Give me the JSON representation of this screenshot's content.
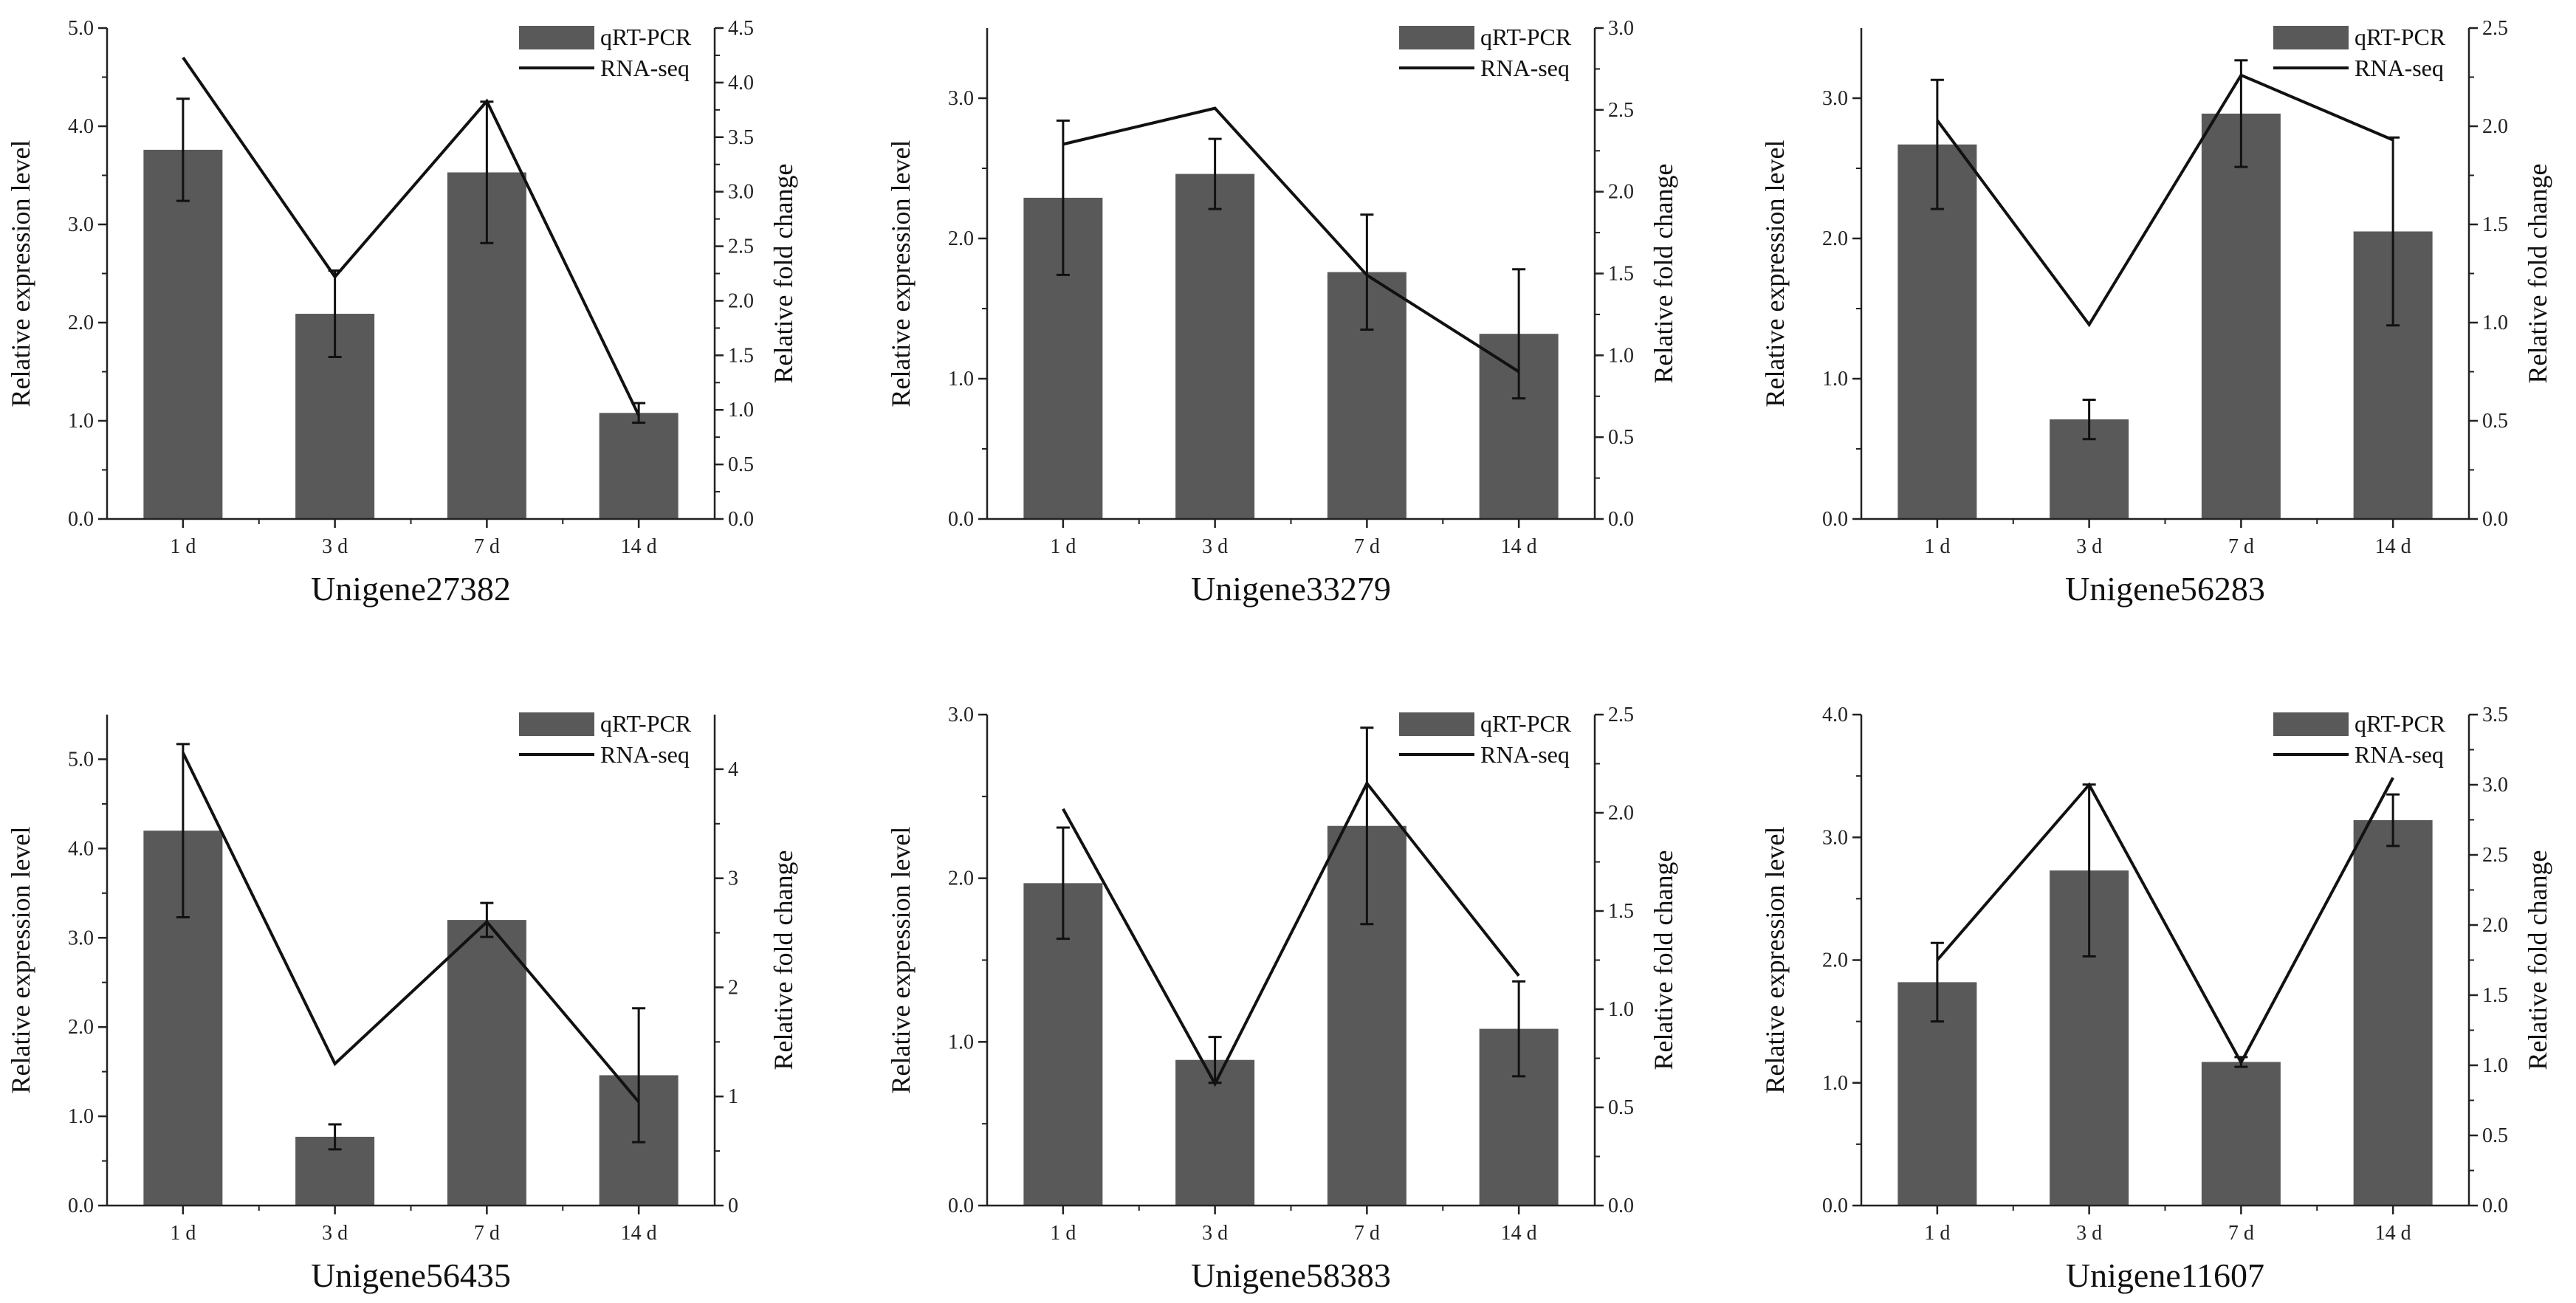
{
  "colors": {
    "bar": "#595959",
    "line": "#111111",
    "axis": "#222222"
  },
  "legend": {
    "bar_label": "qRT-PCR",
    "line_label": "RNA-seq"
  },
  "chart_data": [
    {
      "type": "bar",
      "title": "Unigene27382",
      "categories": [
        "1 d",
        "3 d",
        "7 d",
        "14 d"
      ],
      "ylabel": "Relative expression level",
      "y2label": "Relative fold change",
      "ylim": [
        0,
        5.0
      ],
      "yticks": [
        0,
        1,
        2,
        3,
        4,
        5
      ],
      "ytick_labels": [
        "0.0",
        "1.0",
        "2.0",
        "3.0",
        "4.0",
        "5.0"
      ],
      "y2lim": [
        0,
        4.5
      ],
      "y2ticks": [
        0,
        0.5,
        1,
        1.5,
        2,
        2.5,
        3,
        3.5,
        4,
        4.5
      ],
      "y2tick_labels": [
        "0.0",
        "0.5",
        "1.0",
        "1.5",
        "2.0",
        "2.5",
        "3.0",
        "3.5",
        "4.0",
        "4.5"
      ],
      "series": [
        {
          "name": "qRT-PCR",
          "kind": "bar",
          "axis": "left",
          "values": [
            3.76,
            2.09,
            3.53,
            1.08
          ],
          "errors": [
            0.52,
            0.44,
            0.72,
            0.1
          ]
        },
        {
          "name": "RNA-seq",
          "kind": "line",
          "axis": "right",
          "values": [
            4.23,
            2.22,
            3.83,
            0.95
          ]
        }
      ]
    },
    {
      "type": "bar",
      "title": "Unigene33279",
      "categories": [
        "1 d",
        "3 d",
        "7 d",
        "14 d"
      ],
      "ylabel": "Relative expression level",
      "y2label": "Relative fold change",
      "ylim": [
        0,
        3.5
      ],
      "yticks": [
        0,
        1,
        2,
        3
      ],
      "ytick_labels": [
        "0.0",
        "1.0",
        "2.0",
        "3.0"
      ],
      "y2lim": [
        0,
        3.0
      ],
      "y2ticks": [
        0,
        0.5,
        1,
        1.5,
        2,
        2.5,
        3
      ],
      "y2tick_labels": [
        "0.0",
        "0.5",
        "1.0",
        "1.5",
        "2.0",
        "2.5",
        "3.0"
      ],
      "series": [
        {
          "name": "qRT-PCR",
          "kind": "bar",
          "axis": "left",
          "values": [
            2.29,
            2.46,
            1.76,
            1.32
          ],
          "errors": [
            0.55,
            0.25,
            0.41,
            0.46
          ]
        },
        {
          "name": "RNA-seq",
          "kind": "line",
          "axis": "right",
          "values": [
            2.29,
            2.51,
            1.49,
            0.9
          ]
        }
      ]
    },
    {
      "type": "bar",
      "title": "Unigene56283",
      "categories": [
        "1 d",
        "3 d",
        "7 d",
        "14 d"
      ],
      "ylabel": "Relative expression level",
      "y2label": "Relative fold change",
      "ylim": [
        0,
        3.5
      ],
      "yticks": [
        0,
        1,
        2,
        3
      ],
      "ytick_labels": [
        "0.0",
        "1.0",
        "2.0",
        "3.0"
      ],
      "y2lim": [
        0,
        2.5
      ],
      "y2ticks": [
        0,
        0.5,
        1,
        1.5,
        2,
        2.5
      ],
      "y2tick_labels": [
        "0.0",
        "0.5",
        "1.0",
        "1.5",
        "2.0",
        "2.5"
      ],
      "series": [
        {
          "name": "qRT-PCR",
          "kind": "bar",
          "axis": "left",
          "values": [
            2.67,
            0.71,
            2.89,
            2.05
          ],
          "errors": [
            0.46,
            0.14,
            0.38,
            0.67
          ]
        },
        {
          "name": "RNA-seq",
          "kind": "line",
          "axis": "right",
          "values": [
            2.03,
            0.99,
            2.26,
            1.93
          ]
        }
      ]
    },
    {
      "type": "bar",
      "title": "Unigene56435",
      "categories": [
        "1 d",
        "3 d",
        "7 d",
        "14 d"
      ],
      "ylabel": "Relative expression level",
      "y2label": "Relative fold change",
      "ylim": [
        0,
        5.5
      ],
      "yticks": [
        0,
        1,
        2,
        3,
        4,
        5
      ],
      "ytick_labels": [
        "0.0",
        "1.0",
        "2.0",
        "3.0",
        "4.0",
        "5.0"
      ],
      "y2lim": [
        0,
        4.5
      ],
      "y2ticks": [
        0,
        1,
        2,
        3,
        4
      ],
      "y2tick_labels": [
        "0",
        "1",
        "2",
        "3",
        "4"
      ],
      "series": [
        {
          "name": "qRT-PCR",
          "kind": "bar",
          "axis": "left",
          "values": [
            4.2,
            0.77,
            3.2,
            1.46
          ],
          "errors": [
            0.97,
            0.14,
            0.19,
            0.75
          ]
        },
        {
          "name": "RNA-seq",
          "kind": "line",
          "axis": "right",
          "values": [
            4.15,
            1.3,
            2.6,
            0.95
          ]
        }
      ]
    },
    {
      "type": "bar",
      "title": "Unigene58383",
      "categories": [
        "1 d",
        "3 d",
        "7 d",
        "14 d"
      ],
      "ylabel": "Relative expression level",
      "y2label": "Relative fold change",
      "ylim": [
        0,
        3.0
      ],
      "yticks": [
        0,
        1,
        2,
        3
      ],
      "ytick_labels": [
        "0.0",
        "1.0",
        "2.0",
        "3.0"
      ],
      "y2lim": [
        0,
        2.5
      ],
      "y2ticks": [
        0,
        0.5,
        1,
        1.5,
        2,
        2.5
      ],
      "y2tick_labels": [
        "0.0",
        "0.5",
        "1.0",
        "1.5",
        "2.0",
        "2.5"
      ],
      "series": [
        {
          "name": "qRT-PCR",
          "kind": "bar",
          "axis": "left",
          "values": [
            1.97,
            0.89,
            2.32,
            1.08
          ],
          "errors": [
            0.34,
            0.14,
            0.6,
            0.29
          ]
        },
        {
          "name": "RNA-seq",
          "kind": "line",
          "axis": "right",
          "values": [
            2.02,
            0.62,
            2.15,
            1.17
          ]
        }
      ]
    },
    {
      "type": "bar",
      "title": "Unigene11607",
      "categories": [
        "1 d",
        "3 d",
        "7 d",
        "14 d"
      ],
      "ylabel": "Relative expression level",
      "y2label": "Relative fold change",
      "ylim": [
        0,
        4.0
      ],
      "yticks": [
        0,
        1,
        2,
        3,
        4
      ],
      "ytick_labels": [
        "0.0",
        "1.0",
        "2.0",
        "3.0",
        "4.0"
      ],
      "y2lim": [
        0,
        3.5
      ],
      "y2ticks": [
        0,
        0.5,
        1,
        1.5,
        2,
        2.5,
        3,
        3.5
      ],
      "y2tick_labels": [
        "0.0",
        "0.5",
        "1.0",
        "1.5",
        "2.0",
        "2.5",
        "3.0",
        "3.5"
      ],
      "series": [
        {
          "name": "qRT-PCR",
          "kind": "bar",
          "axis": "left",
          "values": [
            1.82,
            2.73,
            1.17,
            3.14
          ],
          "errors": [
            0.32,
            0.7,
            0.04,
            0.21
          ]
        },
        {
          "name": "RNA-seq",
          "kind": "line",
          "axis": "right",
          "values": [
            1.75,
            3.0,
            1.02,
            3.05
          ]
        }
      ]
    }
  ]
}
